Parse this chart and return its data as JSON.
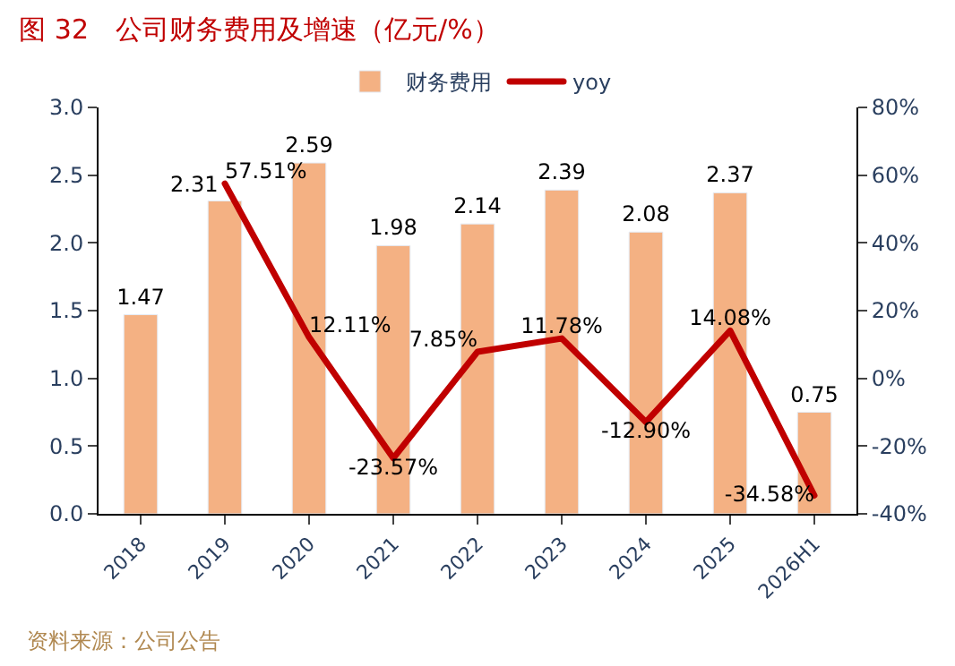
{
  "chart_data": {
    "type": "bar",
    "title": "图 32　公司财务费用及增速（亿元/%）",
    "categories": [
      "2018",
      "2019",
      "2020",
      "2021",
      "2022",
      "2023",
      "2024",
      "2025",
      "2026H1"
    ],
    "series": [
      {
        "name": "财务费用",
        "color": "#f4b183",
        "values": [
          1.47,
          2.31,
          2.59,
          1.98,
          2.14,
          2.39,
          2.08,
          2.37,
          0.75
        ],
        "data_labels": true
      },
      {
        "name": "yoy",
        "type": "line",
        "axis": "y2",
        "color": "#c00000",
        "values": [
          null,
          57.51,
          12.11,
          -23.57,
          7.85,
          11.78,
          -12.9,
          14.08,
          -34.58
        ],
        "value_labels": [
          null,
          "57.51%",
          "12.11%",
          "-23.57%",
          "7.85%",
          "11.78%",
          "-12.90%",
          "14.08%",
          "-34.58%"
        ]
      }
    ],
    "ylim": [
      0,
      3
    ],
    "yticks": [
      {
        "value": 0,
        "label": "0.0"
      },
      {
        "value": 0.5,
        "label": "0.5"
      },
      {
        "value": 1,
        "label": "1.0"
      },
      {
        "value": 1.5,
        "label": "1.5"
      },
      {
        "value": 2,
        "label": "2.0"
      },
      {
        "value": 2.5,
        "label": "2.5"
      },
      {
        "value": 3,
        "label": "3.0"
      }
    ],
    "y2lim": [
      -40,
      80
    ],
    "y2ticks": [
      {
        "value": -40,
        "label": "-40%"
      },
      {
        "value": -20,
        "label": "-20%"
      },
      {
        "value": 0,
        "label": "0%"
      },
      {
        "value": 20,
        "label": "20%"
      },
      {
        "value": 40,
        "label": "40%"
      },
      {
        "value": 60,
        "label": "60%"
      },
      {
        "value": 80,
        "label": "80%"
      }
    ],
    "legend": "top",
    "marker": "none",
    "line_style": "solid",
    "annotations": [
      "资料来源：公司公告"
    ]
  }
}
